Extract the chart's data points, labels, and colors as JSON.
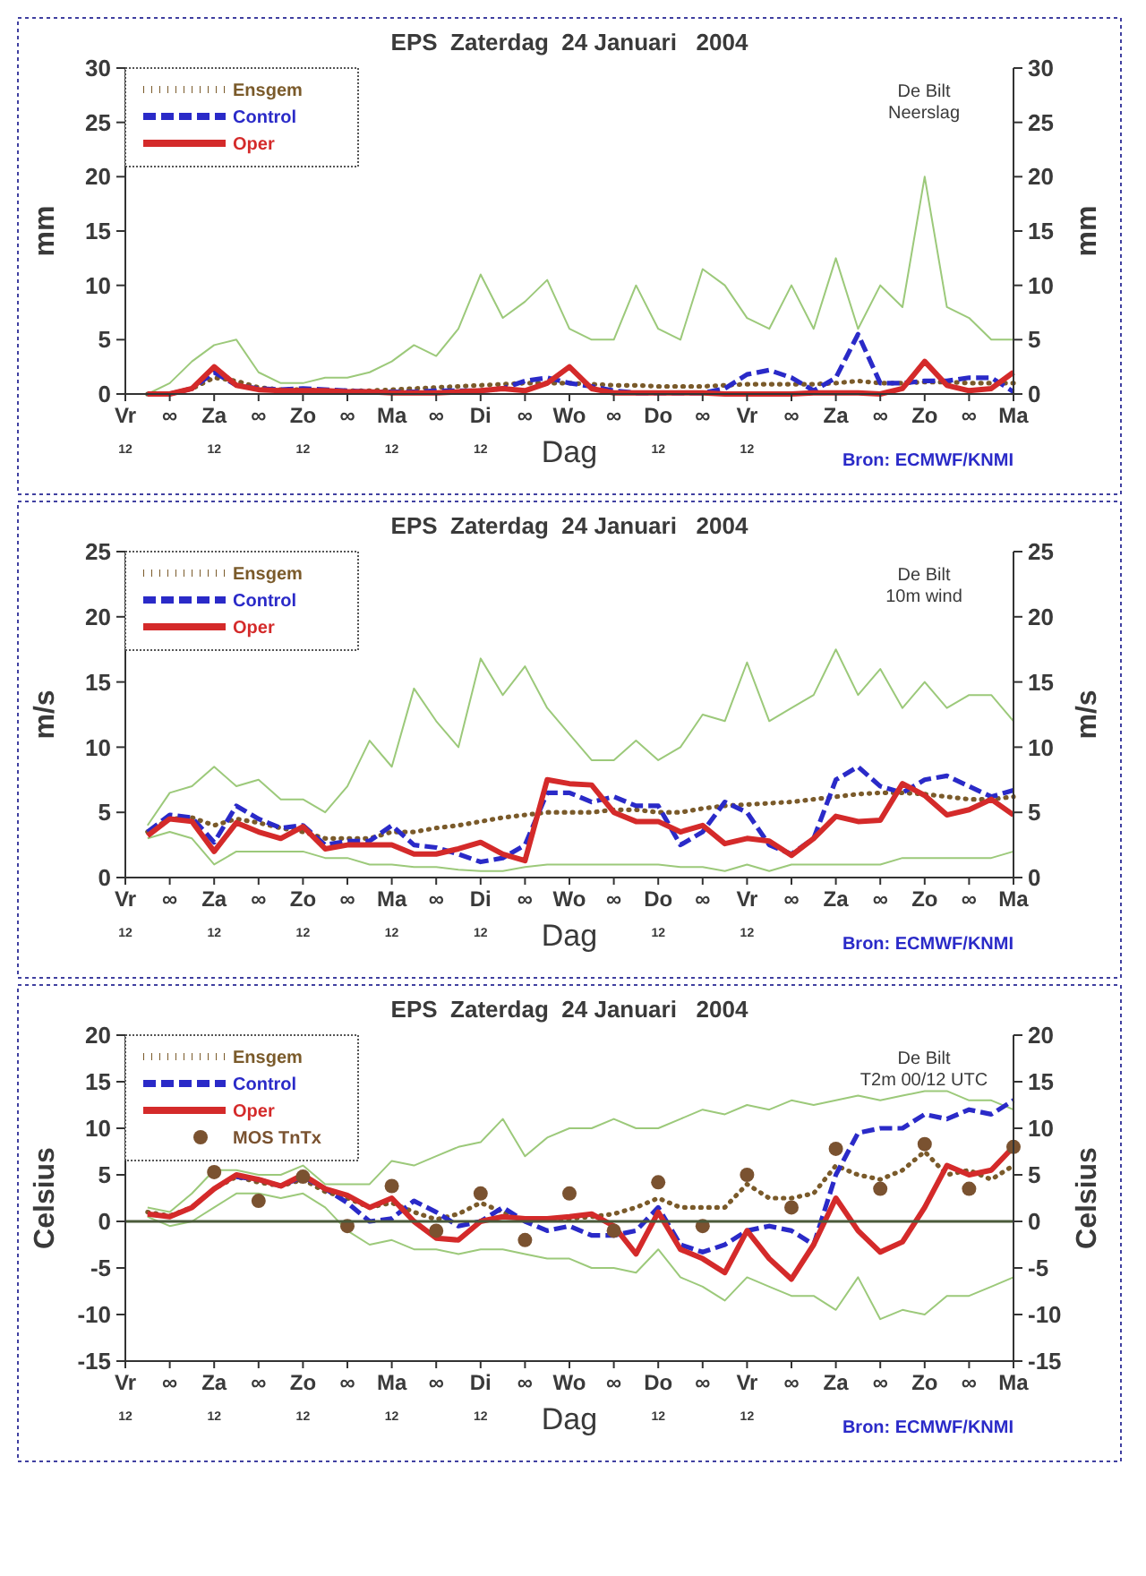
{
  "chart_data": [
    {
      "type": "line",
      "title": "EPS  Zaterdag  24 Januari   2004",
      "xlabel": "Dag",
      "ylabel": "mm",
      "y2label": "mm",
      "annotations": [
        "De Bilt\nNeerslag",
        "Bron: ECMWF/KNMI"
      ],
      "legend": "top left",
      "categories": [
        "Vr\n12",
        null,
        "∞",
        null,
        "Za\n12",
        null,
        "∞",
        null,
        "Zo\n12",
        null,
        "∞",
        null,
        "Ma\n12",
        null,
        "∞",
        null,
        "Di\n12",
        null,
        "∞",
        null,
        "Wo",
        null,
        "∞",
        null,
        "Do\n12",
        null,
        "∞",
        null,
        "Vr\n12",
        null,
        "∞",
        null,
        "Za",
        null,
        "∞",
        null,
        "Zo",
        null,
        "∞",
        null,
        "Ma"
      ],
      "ylim": [
        0,
        30
      ],
      "yticks": [
        0,
        5,
        10,
        15,
        20,
        25,
        30
      ],
      "y2lim": [
        0,
        30
      ],
      "y2ticks": [
        0,
        5,
        10,
        15,
        20,
        25,
        30
      ],
      "series": [
        {
          "color": "#9cc97a",
          "values": [
            null,
            0,
            1,
            3,
            4.5,
            5,
            2,
            1,
            1,
            1.5,
            1.5,
            2,
            3,
            4.5,
            3.5,
            6,
            11,
            7,
            8.5,
            10.5,
            6,
            5,
            5,
            10,
            6,
            5,
            11.5,
            10,
            7,
            6,
            10,
            6,
            12.5,
            6,
            10,
            8,
            20,
            8,
            7,
            5,
            5
          ]
        },
        {
          "name": "Ensgem",
          "color": "#7a5a2a",
          "line_style": "dotted",
          "values": [
            null,
            0,
            0,
            0.5,
            1.5,
            1.2,
            0.6,
            0.4,
            0.4,
            0.3,
            0.3,
            0.3,
            0.4,
            0.5,
            0.6,
            0.7,
            0.8,
            0.9,
            1,
            1,
            1,
            0.9,
            0.8,
            0.8,
            0.7,
            0.7,
            0.7,
            0.8,
            0.9,
            0.9,
            0.9,
            0.9,
            1,
            1.2,
            1,
            1,
            1.1,
            1.1,
            1,
            1,
            1
          ]
        },
        {
          "name": "Control",
          "color": "#2a2ac8",
          "line_style": "dashed",
          "values": [
            null,
            0,
            0,
            0.5,
            2,
            0.8,
            0.5,
            0.4,
            0.5,
            0.4,
            0.3,
            0.2,
            0.2,
            0.2,
            0.3,
            0.3,
            0.3,
            0.5,
            1.2,
            1.5,
            1,
            0.7,
            0.3,
            0.1,
            0.1,
            0.1,
            0.1,
            0.5,
            1.8,
            2.2,
            1.5,
            0.3,
            1.5,
            5.5,
            1,
            1,
            1.2,
            1.2,
            1.5,
            1.5,
            0.2
          ]
        },
        {
          "name": "Oper",
          "color": "#d42a2a",
          "line_style": "solid",
          "values": [
            null,
            0,
            0,
            0.5,
            2.5,
            0.8,
            0.4,
            0.3,
            0.3,
            0.3,
            0.2,
            0.2,
            0.1,
            0.1,
            0.1,
            0.2,
            0.3,
            0.5,
            0.3,
            1,
            2.5,
            0.5,
            0.1,
            0.1,
            0.1,
            0.1,
            0.1,
            0,
            0,
            0,
            0,
            0.1,
            0.1,
            0.1,
            0,
            0.5,
            3,
            0.8,
            0.3,
            0.5,
            2
          ]
        }
      ]
    },
    {
      "type": "line",
      "title": "EPS  Zaterdag  24 Januari   2004",
      "xlabel": "Dag",
      "ylabel": "m/s",
      "y2label": "m/s",
      "annotations": [
        "De Bilt\n10m wind",
        "Bron: ECMWF/KNMI"
      ],
      "legend": "top left",
      "categories": [
        "Vr\n12",
        null,
        "∞",
        null,
        "Za\n12",
        null,
        "∞",
        null,
        "Zo\n12",
        null,
        "∞",
        null,
        "Ma\n12",
        null,
        "∞",
        null,
        "Di\n12",
        null,
        "∞",
        null,
        "Wo",
        null,
        "∞",
        null,
        "Do\n12",
        null,
        "∞",
        null,
        "Vr\n12",
        null,
        "∞",
        null,
        "Za",
        null,
        "∞",
        null,
        "Zo",
        null,
        "∞",
        null,
        "Ma"
      ],
      "ylim": [
        0,
        25
      ],
      "yticks": [
        0,
        5,
        10,
        15,
        20,
        25
      ],
      "y2lim": [
        0,
        25
      ],
      "y2ticks": [
        0,
        5,
        10,
        15,
        20,
        25
      ],
      "series": [
        {
          "color": "#9cc97a",
          "values": [
            null,
            4,
            6.5,
            7,
            8.5,
            7,
            7.5,
            6,
            6,
            5,
            7,
            10.5,
            8.5,
            14.5,
            12,
            10,
            16.8,
            14,
            16.2,
            13,
            11,
            9,
            9,
            10.5,
            9,
            10,
            12.5,
            12,
            16.5,
            12,
            13,
            14,
            17.5,
            14,
            16,
            13,
            15,
            13,
            14,
            14,
            12
          ]
        },
        {
          "color": "#9cc97a",
          "values": [
            null,
            3,
            3.5,
            3,
            1,
            2,
            2,
            2,
            2,
            1.5,
            1.5,
            1,
            1,
            0.8,
            0.8,
            0.6,
            0.5,
            0.5,
            0.8,
            1,
            1,
            1,
            1,
            1,
            1,
            0.8,
            0.8,
            0.5,
            1,
            0.5,
            1,
            1,
            1,
            1,
            1,
            1.5,
            1.5,
            1.5,
            1.5,
            1.5,
            2
          ]
        },
        {
          "name": "Ensgem",
          "color": "#7a5a2a",
          "line_style": "dotted",
          "values": [
            null,
            3.5,
            4.5,
            4.6,
            4,
            4.5,
            4.2,
            3.8,
            3.5,
            3,
            3,
            3,
            3.5,
            3.5,
            3.8,
            4,
            4.3,
            4.6,
            4.8,
            5,
            5,
            5,
            5.2,
            5.2,
            5,
            5,
            5.3,
            5.5,
            5.6,
            5.7,
            5.8,
            6,
            6.2,
            6.4,
            6.5,
            6.5,
            6.4,
            6.2,
            6,
            6,
            6.2
          ]
        },
        {
          "name": "Control",
          "color": "#2a2ac8",
          "line_style": "dashed",
          "values": [
            null,
            3.5,
            4.8,
            4.6,
            2.7,
            5.5,
            4.5,
            3.8,
            4,
            2.5,
            2.8,
            2.8,
            4,
            2.5,
            2.3,
            1.8,
            1.2,
            1.5,
            2.5,
            6.5,
            6.5,
            5.8,
            6.2,
            5.5,
            5.5,
            2.5,
            3.5,
            5.8,
            5,
            2.5,
            1.8,
            3,
            7.5,
            8.5,
            7,
            6.5,
            7.5,
            7.8,
            7,
            6.2,
            6.7
          ]
        },
        {
          "name": "Oper",
          "color": "#d42a2a",
          "line_style": "solid",
          "values": [
            null,
            3.2,
            4.5,
            4.3,
            2,
            4.2,
            3.5,
            3,
            3.9,
            2.2,
            2.5,
            2.5,
            2.5,
            1.8,
            1.8,
            2.2,
            2.7,
            1.8,
            1.3,
            7.5,
            7.2,
            7.1,
            5,
            4.3,
            4.3,
            3.5,
            4,
            2.6,
            3,
            2.8,
            1.7,
            3,
            4.7,
            4.3,
            4.4,
            7.2,
            6.3,
            4.8,
            5.2,
            6,
            4.8
          ]
        }
      ]
    },
    {
      "type": "line",
      "title": "EPS  Zaterdag  24 Januari   2004",
      "xlabel": "Dag",
      "ylabel": "Celsius",
      "y2label": "Celsius",
      "annotations": [
        "De Bilt\nT2m 00/12 UTC",
        "Bron: ECMWF/KNMI"
      ],
      "legend": "top left",
      "ref_lines": [
        {
          "axis": "y",
          "value": 0,
          "color": "#4a5a3a"
        }
      ],
      "categories": [
        "Vr\n12",
        null,
        "∞",
        null,
        "Za\n12",
        null,
        "∞",
        null,
        "Zo\n12",
        null,
        "∞",
        null,
        "Ma\n12",
        null,
        "∞",
        null,
        "Di\n12",
        null,
        "∞",
        null,
        "Wo",
        null,
        "∞",
        null,
        "Do\n12",
        null,
        "∞",
        null,
        "Vr\n12",
        null,
        "∞",
        null,
        "Za",
        null,
        "∞",
        null,
        "Zo",
        null,
        "∞",
        null,
        "Ma"
      ],
      "ylim": [
        -15,
        20
      ],
      "yticks": [
        -15,
        -10,
        -5,
        0,
        5,
        10,
        15,
        20
      ],
      "y2lim": [
        -15,
        20
      ],
      "y2ticks": [
        -15,
        -10,
        -5,
        0,
        5,
        10,
        15,
        20
      ],
      "series": [
        {
          "color": "#9cc97a",
          "values": [
            null,
            1.5,
            1,
            3,
            5.5,
            5.5,
            5,
            5,
            6,
            4,
            4,
            4,
            6.5,
            6,
            7,
            8,
            8.5,
            11,
            7,
            9,
            10,
            10,
            11,
            10,
            10,
            11,
            12,
            11.5,
            12.5,
            12,
            13,
            12.5,
            13,
            13.5,
            13,
            13.5,
            14,
            14,
            13,
            13,
            12
          ]
        },
        {
          "color": "#9cc97a",
          "values": [
            null,
            0.5,
            -0.5,
            0,
            1.5,
            3,
            3,
            2.5,
            3,
            1.5,
            -1,
            -2.5,
            -2,
            -3,
            -3,
            -3.5,
            -3,
            -3,
            -3.5,
            -4,
            -4,
            -5,
            -5,
            -5.5,
            -3,
            -6,
            -7,
            -8.5,
            -6,
            -7,
            -8,
            -8,
            -9.5,
            -6,
            -10.5,
            -9.5,
            -10,
            -8,
            -8,
            -7,
            -6
          ]
        },
        {
          "name": "Ensgem",
          "color": "#7a5a2a",
          "line_style": "dotted",
          "values": [
            null,
            1,
            0.6,
            1.5,
            3.5,
            4.8,
            4.2,
            3.8,
            4.5,
            3.2,
            2.5,
            1.5,
            2,
            1,
            0.2,
            0.8,
            2,
            1,
            0,
            0.3,
            0.3,
            0.5,
            0.8,
            1.5,
            2.5,
            1.5,
            1.5,
            1.5,
            4,
            2.5,
            2.5,
            3,
            6,
            5,
            4.5,
            5.5,
            7.5,
            5,
            5.5,
            4.5,
            6
          ]
        },
        {
          "name": "Control",
          "color": "#2a2ac8",
          "line_style": "dashed",
          "values": [
            null,
            null,
            null,
            null,
            null,
            4.8,
            4.5,
            3.8,
            4.8,
            3.5,
            2,
            0,
            0.3,
            2.2,
            1,
            -0.5,
            0,
            1.5,
            0,
            -1,
            -0.5,
            -1.5,
            -1.5,
            -1,
            1.5,
            -2.5,
            -3.3,
            -2.5,
            -1,
            -0.5,
            -1,
            -2.5,
            5,
            9.5,
            10,
            10,
            11.5,
            11,
            12,
            11.5,
            13
          ]
        },
        {
          "name": "Oper",
          "color": "#d42a2a",
          "line_style": "solid",
          "values": [
            null,
            0.8,
            0.5,
            1.5,
            3.5,
            5,
            4.5,
            3.8,
            5,
            3.5,
            2.8,
            1.5,
            2.5,
            0,
            -1.8,
            -2,
            0,
            0.5,
            0.3,
            0.3,
            0.5,
            0.8,
            -0.5,
            -3.5,
            1,
            -3,
            -4,
            -5.5,
            -1,
            -4,
            -6.2,
            -2.5,
            2.5,
            -1,
            -3.3,
            -2.2,
            1.5,
            6,
            5,
            5.5,
            8
          ]
        },
        {
          "name": "MOS TnTx",
          "type": "scatter",
          "marker": "circle",
          "color": "#7a5230",
          "values": [
            null,
            null,
            null,
            null,
            5.3,
            null,
            2.2,
            null,
            4.8,
            null,
            -0.5,
            null,
            3.8,
            null,
            -1,
            null,
            3,
            null,
            -2,
            null,
            3,
            null,
            -1,
            null,
            4.2,
            null,
            -0.5,
            null,
            5,
            null,
            1.5,
            null,
            7.8,
            null,
            3.5,
            null,
            8.3,
            null,
            3.5,
            null,
            8
          ]
        }
      ]
    }
  ]
}
